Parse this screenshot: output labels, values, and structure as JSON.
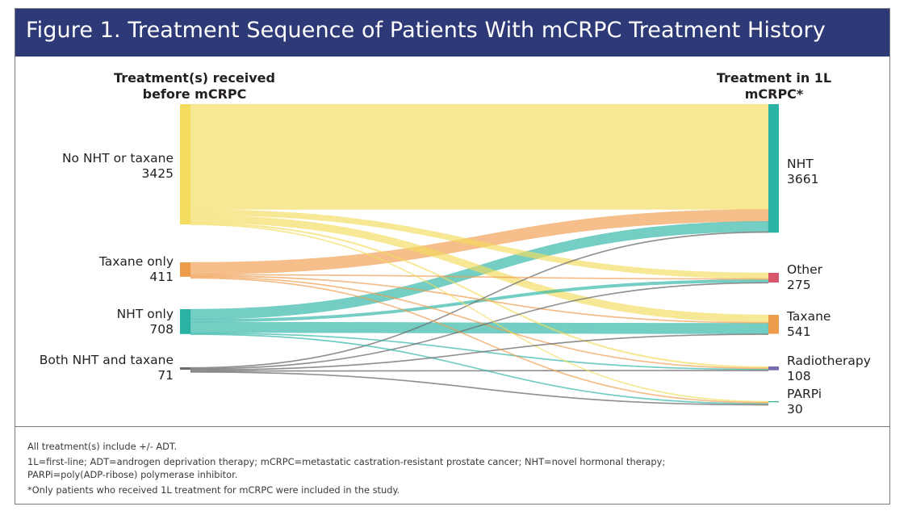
{
  "figure": {
    "title": "Figure 1. Treatment Sequence of Patients With mCRPC Treatment History"
  },
  "chart_data": {
    "type": "sankey",
    "left_header": [
      "Treatment(s) received",
      "before mCRPC"
    ],
    "right_header": [
      "Treatment in 1L",
      "mCRPC*"
    ],
    "sources": [
      {
        "id": "none",
        "label": "No NHT or taxane",
        "count": 3425,
        "color": "#f3dc5e"
      },
      {
        "id": "tax",
        "label": "Taxane only",
        "count": 411,
        "color": "#ef9b4c"
      },
      {
        "id": "nht",
        "label": "NHT only",
        "count": 708,
        "color": "#2ab3a5"
      },
      {
        "id": "both",
        "label": "Both NHT and taxane",
        "count": 71,
        "color": "#6d6d6d"
      }
    ],
    "targets": [
      {
        "id": "NHT",
        "label": "NHT",
        "count": 3661,
        "color": "#2ab3a5"
      },
      {
        "id": "Other",
        "label": "Other",
        "count": 275,
        "color": "#d9556c"
      },
      {
        "id": "Taxane",
        "label": "Taxane",
        "count": 541,
        "color": "#ef9b4c"
      },
      {
        "id": "Radio",
        "label": "Radiotherapy",
        "count": 108,
        "color": "#7a6bb0"
      },
      {
        "id": "PARPi",
        "label": "PARPi",
        "count": 30,
        "color": "#42b89a"
      }
    ],
    "flows": [
      {
        "from": "none",
        "to": "NHT",
        "value": 3000
      },
      {
        "from": "none",
        "to": "Other",
        "value": 160
      },
      {
        "from": "none",
        "to": "Taxane",
        "value": 210
      },
      {
        "from": "none",
        "to": "Radio",
        "value": 40
      },
      {
        "from": "none",
        "to": "PARPi",
        "value": 15
      },
      {
        "from": "tax",
        "to": "NHT",
        "value": 340
      },
      {
        "from": "tax",
        "to": "Other",
        "value": 20
      },
      {
        "from": "tax",
        "to": "Taxane",
        "value": 25
      },
      {
        "from": "tax",
        "to": "Radio",
        "value": 20
      },
      {
        "from": "tax",
        "to": "PARPi",
        "value": 6
      },
      {
        "from": "nht",
        "to": "NHT",
        "value": 290
      },
      {
        "from": "nht",
        "to": "Other",
        "value": 80
      },
      {
        "from": "nht",
        "to": "Taxane",
        "value": 300
      },
      {
        "from": "nht",
        "to": "Radio",
        "value": 30
      },
      {
        "from": "nht",
        "to": "PARPi",
        "value": 8
      },
      {
        "from": "both",
        "to": "NHT",
        "value": 31
      },
      {
        "from": "both",
        "to": "Other",
        "value": 15
      },
      {
        "from": "both",
        "to": "Taxane",
        "value": 6
      },
      {
        "from": "both",
        "to": "Radio",
        "value": 18
      },
      {
        "from": "both",
        "to": "PARPi",
        "value": 1
      }
    ]
  },
  "footnotes": {
    "line1": "All treatment(s) include +/- ADT.",
    "line2": "1L=first-line; ADT=androgen deprivation therapy; mCRPC=metastatic castration-resistant prostate cancer; NHT=novel hormonal therapy;",
    "line3": "PARPi=poly(ADP-ribose) polymerase inhibitor.",
    "line4": "*Only patients who received 1L treatment for mCRPC were included in the study."
  }
}
